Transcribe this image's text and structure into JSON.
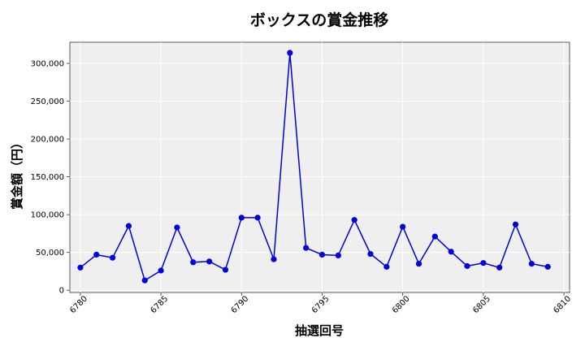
{
  "chart_data": {
    "type": "line",
    "title": "ボックスの賞金推移",
    "xlabel": "抽選回号",
    "ylabel": "賞金額（円）",
    "xlim": [
      6779.35,
      6810.35
    ],
    "ylim": [
      -3000,
      328000
    ],
    "xticks": [
      6780,
      6785,
      6790,
      6795,
      6800,
      6805,
      6810
    ],
    "yticks": [
      0,
      50000,
      100000,
      150000,
      200000,
      250000,
      300000
    ],
    "ytick_labels": [
      "0",
      "50,000",
      "100,000",
      "150,000",
      "200,000",
      "250,000",
      "300,000"
    ],
    "grid": true,
    "series": [
      {
        "color": "#0000dd",
        "x": [
          6780,
          6781,
          6782,
          6783,
          6784,
          6785,
          6786,
          6787,
          6788,
          6789,
          6790,
          6791,
          6792,
          6793,
          6794,
          6795,
          6796,
          6797,
          6798,
          6799,
          6800,
          6801,
          6802,
          6803,
          6804,
          6805,
          6806,
          6807,
          6808,
          6809
        ],
        "y": [
          30000,
          47000,
          43000,
          85000,
          13000,
          26000,
          83000,
          37000,
          38000,
          27000,
          96000,
          96000,
          41000,
          314000,
          56000,
          47000,
          46000,
          93000,
          48000,
          31000,
          84000,
          35000,
          71000,
          51000,
          32000,
          36000,
          30000,
          87000,
          35000,
          31000
        ]
      }
    ]
  }
}
